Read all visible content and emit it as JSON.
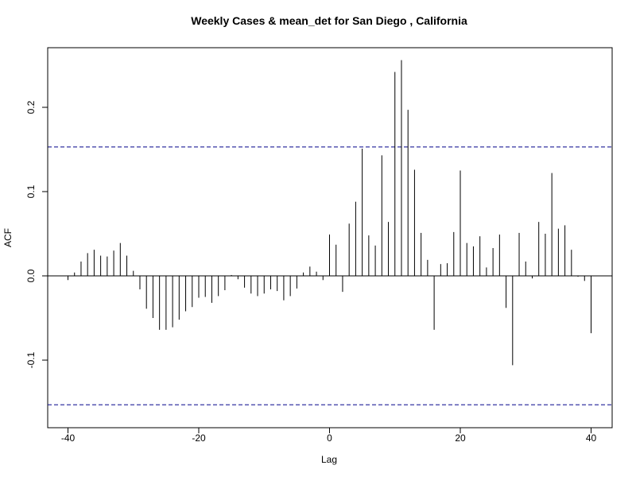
{
  "chart_data": {
    "type": "bar",
    "title": "Weekly Cases & mean_det for San Diego , California",
    "xlabel": "Lag",
    "ylabel": "ACF",
    "xlim": [
      -40,
      40
    ],
    "ylim": [
      -0.165,
      0.27
    ],
    "x_ticks": [
      -40,
      -20,
      0,
      20,
      40
    ],
    "x_tick_labels": [
      "-40",
      "-20",
      "0",
      "20",
      "40"
    ],
    "y_ticks": [
      -0.1,
      0.0,
      0.1,
      0.2
    ],
    "y_tick_labels": [
      "-0.1",
      "0.0",
      "0.1",
      "0.2"
    ],
    "ci_upper": 0.153,
    "ci_lower": -0.153,
    "ci_color": "#00008b",
    "grid": false,
    "x": [
      -40,
      -39,
      -38,
      -37,
      -36,
      -35,
      -34,
      -33,
      -32,
      -31,
      -30,
      -29,
      -28,
      -27,
      -26,
      -25,
      -24,
      -23,
      -22,
      -21,
      -20,
      -19,
      -18,
      -17,
      -16,
      -15,
      -14,
      -13,
      -12,
      -11,
      -10,
      -9,
      -8,
      -7,
      -6,
      -5,
      -4,
      -3,
      -2,
      -1,
      0,
      1,
      2,
      3,
      4,
      5,
      6,
      7,
      8,
      9,
      10,
      11,
      12,
      13,
      14,
      15,
      16,
      17,
      18,
      19,
      20,
      21,
      22,
      23,
      24,
      25,
      26,
      27,
      28,
      29,
      30,
      31,
      32,
      33,
      34,
      35,
      36,
      37,
      38,
      39,
      40
    ],
    "values": [
      -0.005,
      0.004,
      0.017,
      0.027,
      0.031,
      0.024,
      0.023,
      0.03,
      0.039,
      0.024,
      0.006,
      -0.016,
      -0.039,
      -0.05,
      -0.064,
      -0.064,
      -0.061,
      -0.052,
      -0.042,
      -0.037,
      -0.026,
      -0.025,
      -0.032,
      -0.024,
      -0.017,
      0.001,
      -0.004,
      -0.014,
      -0.021,
      -0.024,
      -0.021,
      -0.016,
      -0.018,
      -0.029,
      -0.024,
      -0.015,
      0.004,
      0.011,
      0.005,
      -0.005,
      0.049,
      0.037,
      -0.019,
      0.062,
      0.088,
      0.151,
      0.048,
      0.036,
      0.143,
      0.064,
      0.242,
      0.256,
      0.197,
      0.126,
      0.051,
      0.019,
      -0.064,
      0.014,
      0.015,
      0.052,
      0.125,
      0.039,
      0.035,
      0.047,
      0.01,
      0.033,
      0.049,
      -0.038,
      -0.106,
      0.051,
      0.017,
      -0.003,
      0.064,
      0.05,
      0.122,
      0.056,
      0.06,
      0.031,
      -0.001,
      -0.006,
      -0.068
    ]
  }
}
